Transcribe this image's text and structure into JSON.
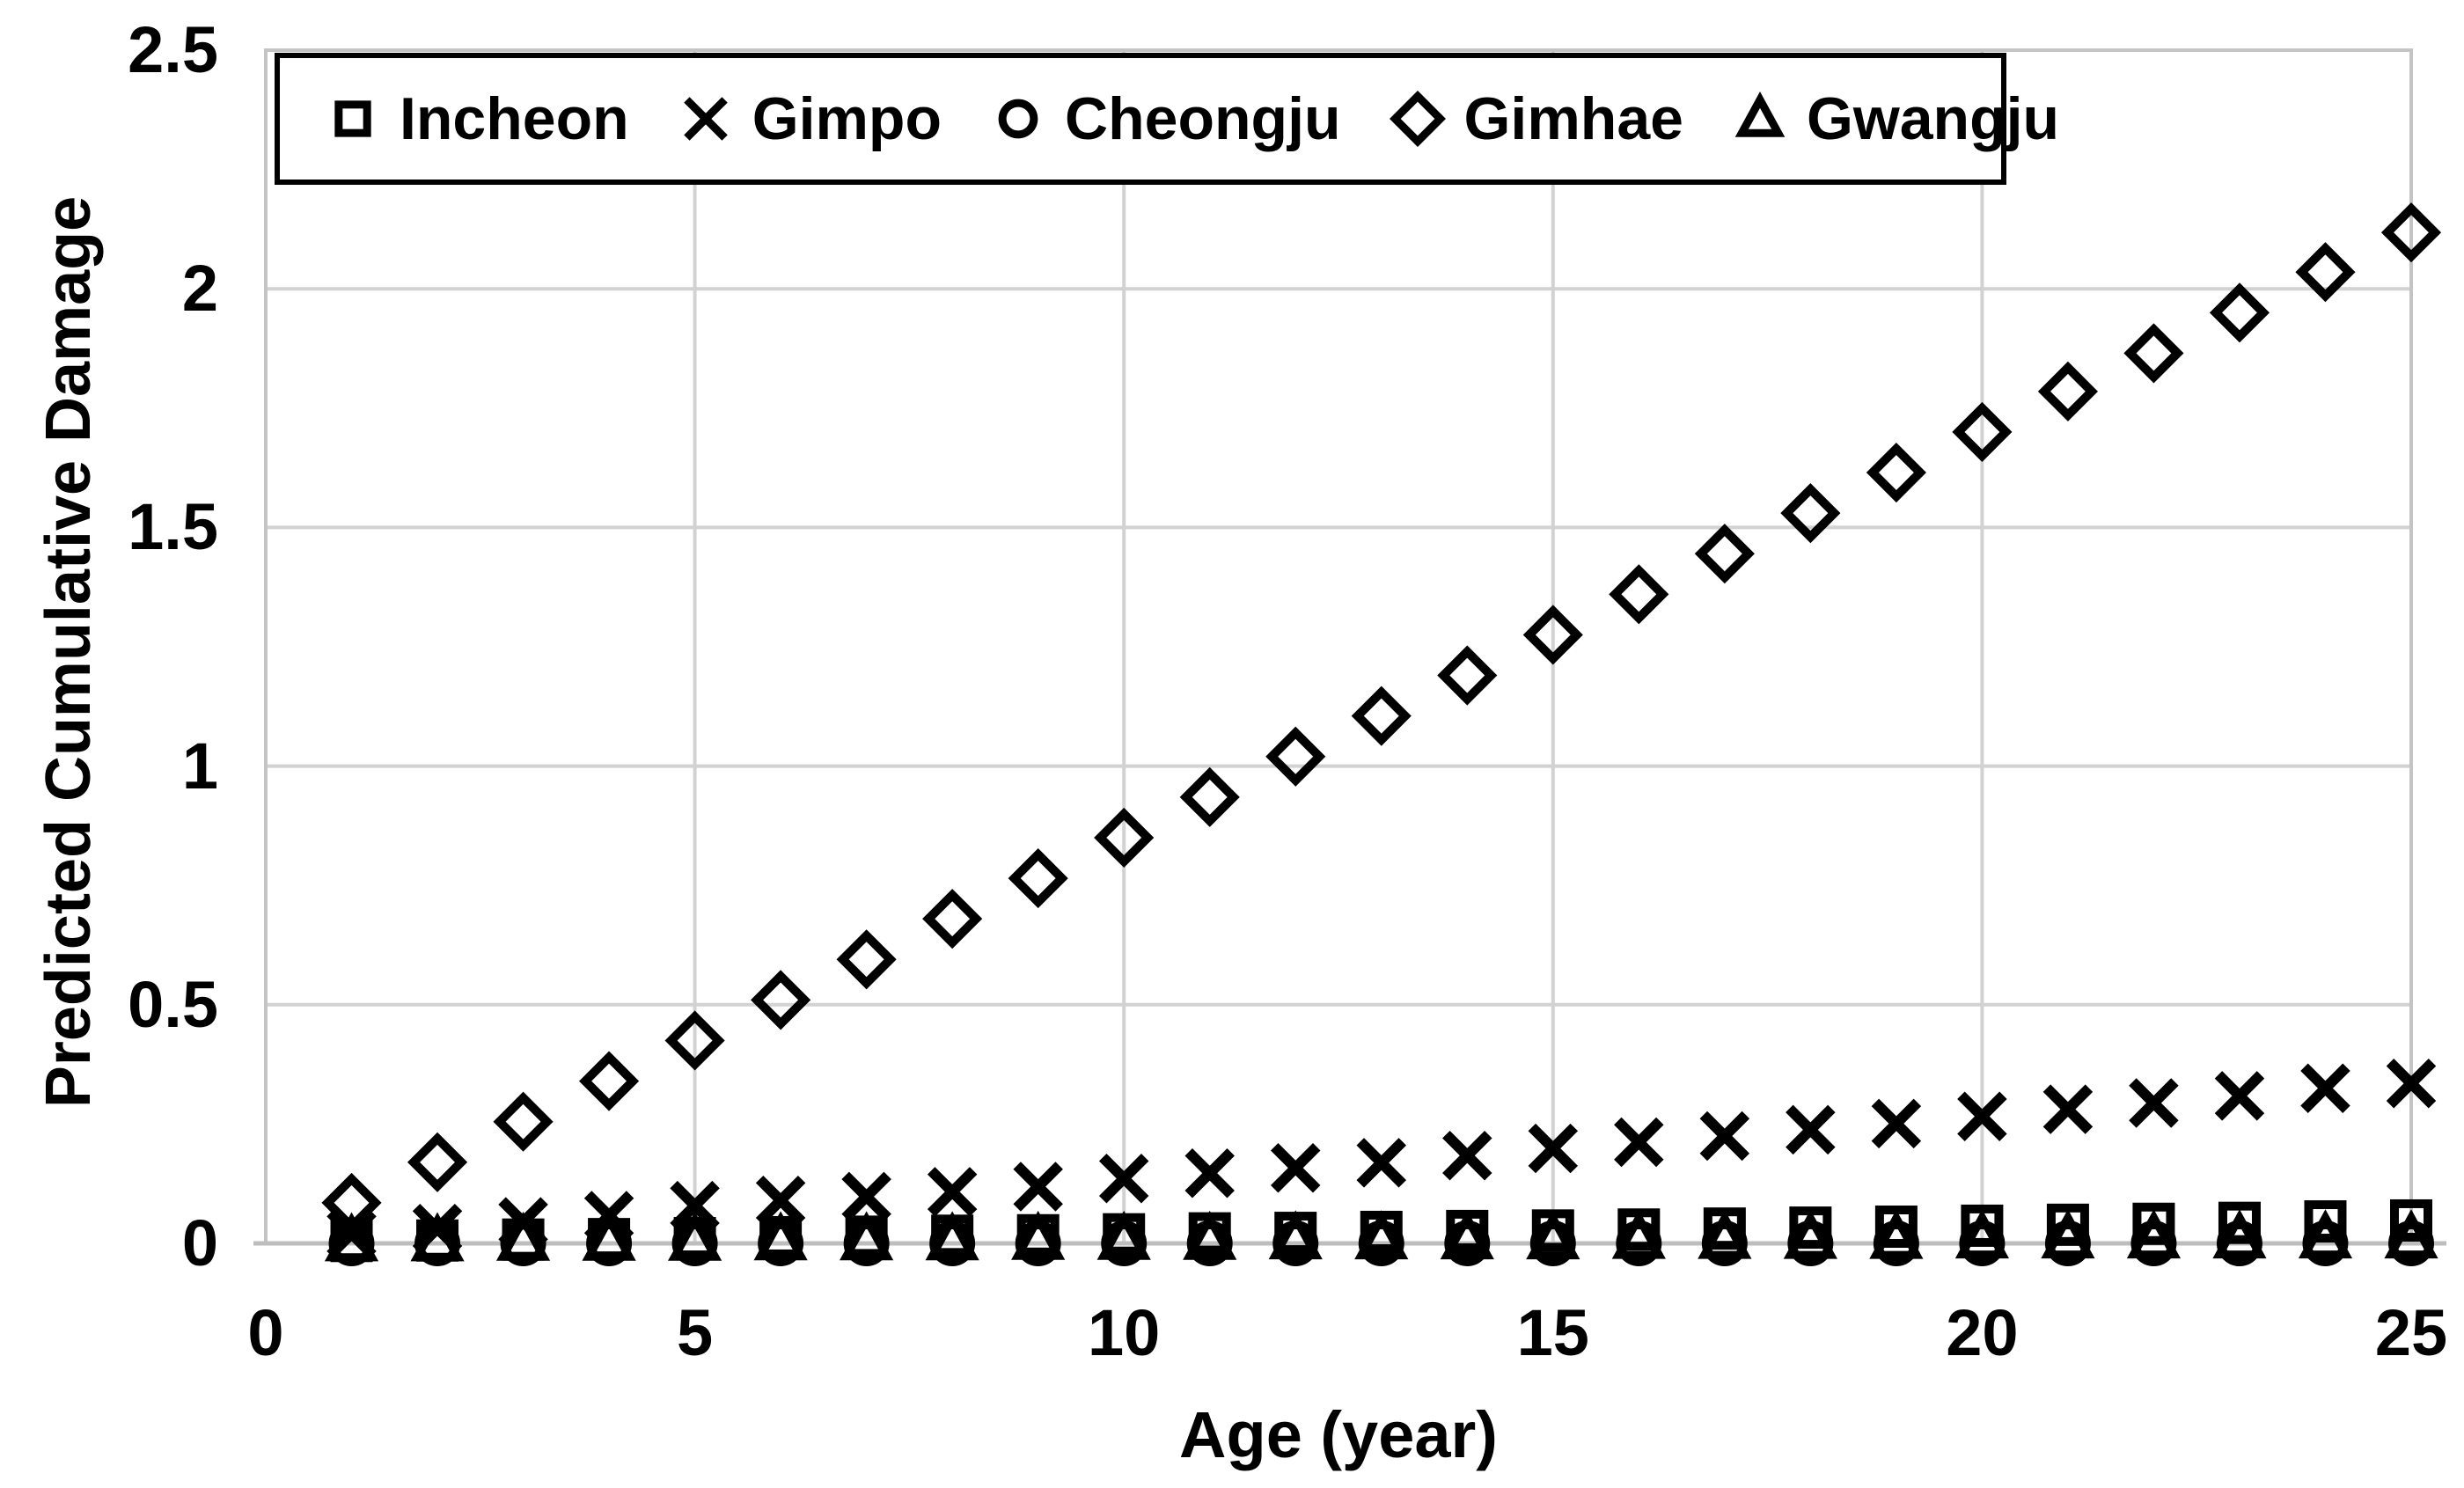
{
  "figure": {
    "x_axis": {
      "title": "Age (year)",
      "ticks": [
        "0",
        "5",
        "10",
        "15",
        "20",
        "25"
      ],
      "tick_values": [
        0,
        5,
        10,
        15,
        20,
        25
      ],
      "min": 0,
      "max": 25
    },
    "y_axis": {
      "title": "Predicted Cumulative Damage",
      "ticks": [
        "0",
        "0.5",
        "1",
        "1.5",
        "2",
        "2.5"
      ],
      "tick_values": [
        0,
        0.5,
        1,
        1.5,
        2,
        2.5
      ],
      "min": 0,
      "max": 2.5
    },
    "grid": "on",
    "legend_position": "top-inside",
    "colors": {
      "marker": "#000000",
      "grid": "#d2d2d2",
      "frame": "#c4c4c4",
      "background": "#ffffff",
      "text": "#000000"
    }
  },
  "chart_data": {
    "type": "scatter",
    "title": "",
    "xlabel": "Age (year)",
    "ylabel": "Predicted Cumulative Damage",
    "xlim": [
      0,
      25
    ],
    "ylim": [
      0,
      2.5
    ],
    "x": [
      1,
      2,
      3,
      4,
      5,
      6,
      7,
      8,
      9,
      10,
      11,
      12,
      13,
      14,
      15,
      16,
      17,
      18,
      19,
      20,
      21,
      22,
      23,
      24,
      25
    ],
    "series": [
      {
        "name": "Incheon",
        "marker": "square",
        "values": [
          0.005,
          0.006,
          0.008,
          0.009,
          0.011,
          0.013,
          0.014,
          0.016,
          0.017,
          0.019,
          0.021,
          0.022,
          0.024,
          0.026,
          0.027,
          0.029,
          0.031,
          0.033,
          0.035,
          0.037,
          0.039,
          0.041,
          0.043,
          0.046,
          0.048
        ]
      },
      {
        "name": "Gimpo",
        "marker": "x",
        "values": [
          0.02,
          0.031,
          0.045,
          0.058,
          0.079,
          0.09,
          0.098,
          0.108,
          0.119,
          0.136,
          0.147,
          0.158,
          0.169,
          0.184,
          0.199,
          0.212,
          0.225,
          0.238,
          0.251,
          0.266,
          0.281,
          0.294,
          0.309,
          0.325,
          0.335
        ]
      },
      {
        "name": "Cheongju",
        "marker": "circle",
        "values": [
          0.0,
          0.0,
          0.0,
          0.0,
          0.0,
          0.0,
          0.0,
          0.0,
          0.0,
          0.0,
          0.0,
          0.0,
          0.0,
          0.0,
          0.0,
          0.0,
          0.0,
          0.0,
          0.0,
          0.0,
          0.0,
          0.0,
          0.0,
          0.0,
          0.0
        ]
      },
      {
        "name": "Gimhae",
        "marker": "diamond",
        "values": [
          0.085,
          0.17,
          0.255,
          0.34,
          0.425,
          0.51,
          0.595,
          0.68,
          0.765,
          0.85,
          0.935,
          1.02,
          1.105,
          1.19,
          1.275,
          1.36,
          1.445,
          1.53,
          1.615,
          1.7,
          1.785,
          1.865,
          1.95,
          2.035,
          2.118
        ]
      },
      {
        "name": "Gwangju",
        "marker": "triangle",
        "values": [
          0.004,
          0.004,
          0.005,
          0.005,
          0.005,
          0.006,
          0.006,
          0.006,
          0.007,
          0.007,
          0.007,
          0.008,
          0.008,
          0.008,
          0.008,
          0.009,
          0.009,
          0.009,
          0.009,
          0.01,
          0.01,
          0.01,
          0.01,
          0.01,
          0.01
        ]
      }
    ]
  }
}
